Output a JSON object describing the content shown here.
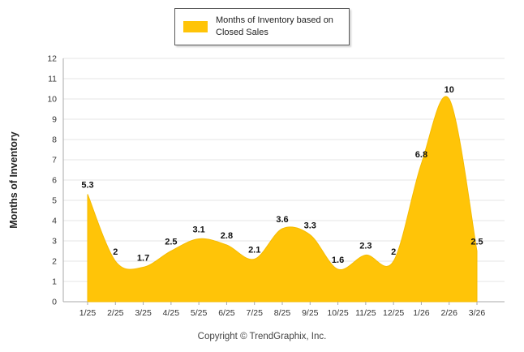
{
  "legend": {
    "label": "Months of Inventory based on Closed Sales"
  },
  "footer": {
    "text": "Copyright © TrendGraphix, Inc."
  },
  "chart_data": {
    "type": "area",
    "title": "",
    "xlabel": "",
    "ylabel": "Months of Inventory",
    "categories": [
      "1/25",
      "2/25",
      "3/25",
      "4/25",
      "5/25",
      "6/25",
      "7/25",
      "8/25",
      "9/25",
      "10/25",
      "11/25",
      "12/25",
      "1/26",
      "2/26",
      "3/26"
    ],
    "series": [
      {
        "name": "Months of Inventory based on Closed Sales",
        "values": [
          5.3,
          2,
          1.7,
          2.5,
          3.1,
          2.8,
          2.1,
          3.6,
          3.3,
          1.6,
          2.3,
          2,
          6.8,
          10,
          2.5
        ]
      }
    ],
    "ylim": [
      0,
      12
    ],
    "ytick_step": 1,
    "grid": true,
    "legend_position": "top",
    "colors": {
      "area": "#FFC408",
      "area_edge": "#F5BB00",
      "grid": "#e4e4e4",
      "axis": "#aaaaaa",
      "text": "#333333",
      "data_label": "#111111"
    }
  }
}
